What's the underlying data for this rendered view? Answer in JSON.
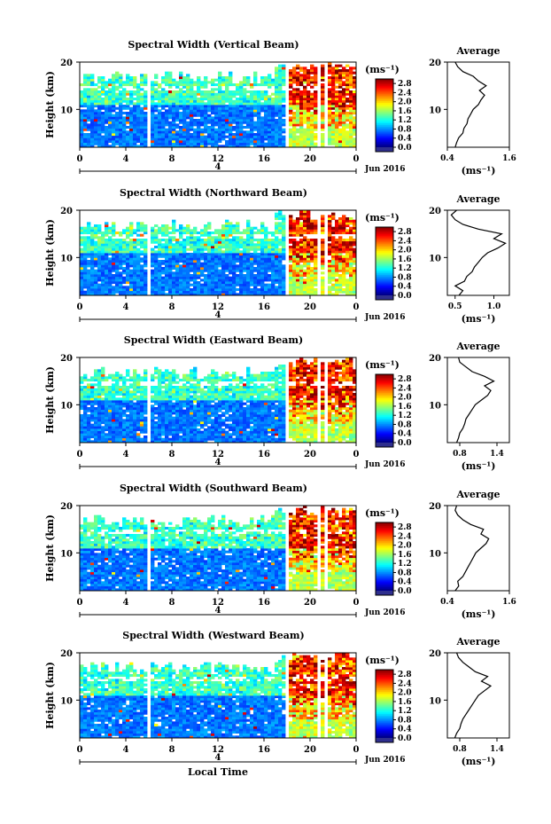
{
  "figure": {
    "xlabel": "Local Time",
    "date_label": "Jun 2016",
    "day_label": "4",
    "unit_label": "(ms⁻¹)",
    "colorbar_ticks": [
      "2.8",
      "2.4",
      "2.0",
      "1.6",
      "1.2",
      "0.8",
      "0.4",
      "0.0"
    ],
    "colormap": "jet",
    "no_data_color": "#ffffff"
  },
  "chart_data": [
    {
      "type": "heatmap",
      "title": "Spectral Width (Vertical Beam)",
      "ylabel": "Height (km)",
      "x_ticks": [
        "0",
        "4",
        "8",
        "12",
        "16",
        "20",
        "0"
      ],
      "y_ticks": [
        "20",
        "10"
      ],
      "xlim": [
        0,
        24
      ],
      "ylim": [
        2,
        20
      ],
      "colorbar_range": [
        0.0,
        3.0
      ],
      "avg_title": "Average",
      "avg_xticks": [
        "0.4",
        "1.6"
      ],
      "avg_xlim": [
        0.4,
        1.6
      ],
      "avg_xlabel": "(ms⁻¹)",
      "avg_profile": {
        "height": [
          2,
          3,
          4,
          5,
          6,
          7,
          8,
          9,
          10,
          11,
          12,
          13,
          14,
          15,
          16,
          17,
          18,
          19,
          20
        ],
        "width": [
          0.55,
          0.58,
          0.62,
          0.7,
          0.72,
          0.78,
          0.8,
          0.85,
          0.9,
          1.0,
          1.05,
          1.12,
          1.02,
          1.15,
          1.0,
          0.9,
          0.7,
          0.6,
          0.55
        ]
      }
    },
    {
      "type": "heatmap",
      "title": "Spectral Width (Northward Beam)",
      "ylabel": "Height (km)",
      "x_ticks": [
        "0",
        "4",
        "8",
        "12",
        "16",
        "20",
        "0"
      ],
      "y_ticks": [
        "20",
        "10"
      ],
      "xlim": [
        0,
        24
      ],
      "ylim": [
        2,
        20
      ],
      "colorbar_range": [
        0.0,
        3.0
      ],
      "avg_title": "Average",
      "avg_xticks": [
        "0.5",
        "1.0"
      ],
      "avg_xlim": [
        0.4,
        1.2
      ],
      "avg_xlabel": "(ms⁻¹)",
      "avg_profile": {
        "height": [
          2,
          3,
          4,
          5,
          6,
          7,
          8,
          9,
          10,
          11,
          12,
          13,
          14,
          15,
          16,
          17,
          18,
          19,
          20
        ],
        "width": [
          0.55,
          0.6,
          0.5,
          0.62,
          0.65,
          0.72,
          0.75,
          0.8,
          0.85,
          0.92,
          1.05,
          1.15,
          1.0,
          1.1,
          0.8,
          0.6,
          0.5,
          0.45,
          0.52
        ]
      }
    },
    {
      "type": "heatmap",
      "title": "Spectral Width (Eastward Beam)",
      "ylabel": "Height (km)",
      "x_ticks": [
        "0",
        "4",
        "8",
        "12",
        "16",
        "20",
        "0"
      ],
      "y_ticks": [
        "20",
        "10"
      ],
      "xlim": [
        0,
        24
      ],
      "ylim": [
        2,
        20
      ],
      "colorbar_range": [
        0.0,
        3.0
      ],
      "avg_title": "Average",
      "avg_xticks": [
        "0.8",
        "1.4"
      ],
      "avg_xlim": [
        0.6,
        1.6
      ],
      "avg_xlabel": "(ms⁻¹)",
      "avg_profile": {
        "height": [
          2,
          3,
          4,
          5,
          6,
          7,
          8,
          9,
          10,
          11,
          12,
          13,
          14,
          15,
          16,
          17,
          18,
          19,
          20
        ],
        "width": [
          0.75,
          0.78,
          0.8,
          0.85,
          0.88,
          0.9,
          0.95,
          1.0,
          1.05,
          1.15,
          1.25,
          1.3,
          1.2,
          1.35,
          1.2,
          1.0,
          0.9,
          0.8,
          0.78
        ]
      }
    },
    {
      "type": "heatmap",
      "title": "Spectral Width (Southward Beam)",
      "ylabel": "Height (km)",
      "x_ticks": [
        "0",
        "4",
        "8",
        "12",
        "16",
        "20",
        "0"
      ],
      "y_ticks": [
        "20",
        "10"
      ],
      "xlim": [
        0,
        24
      ],
      "ylim": [
        2,
        20
      ],
      "colorbar_range": [
        0.0,
        3.0
      ],
      "avg_title": "Average",
      "avg_xticks": [
        "0.4",
        "1.6"
      ],
      "avg_xlim": [
        0.4,
        1.6
      ],
      "avg_xlabel": "(ms⁻¹)",
      "avg_profile": {
        "height": [
          2,
          3,
          4,
          5,
          6,
          7,
          8,
          9,
          10,
          11,
          12,
          13,
          14,
          15,
          16,
          17,
          18,
          19,
          20
        ],
        "width": [
          0.55,
          0.62,
          0.6,
          0.7,
          0.75,
          0.8,
          0.85,
          0.9,
          0.95,
          1.05,
          1.15,
          1.2,
          1.05,
          1.1,
          0.85,
          0.7,
          0.6,
          0.55,
          0.58
        ]
      }
    },
    {
      "type": "heatmap",
      "title": "Spectral Width (Westward Beam)",
      "ylabel": "Height (km)",
      "x_ticks": [
        "0",
        "4",
        "8",
        "12",
        "16",
        "20",
        "0"
      ],
      "y_ticks": [
        "20",
        "10"
      ],
      "xlim": [
        0,
        24
      ],
      "ylim": [
        2,
        20
      ],
      "colorbar_range": [
        0.0,
        3.0
      ],
      "avg_title": "Average",
      "avg_xticks": [
        "0.8",
        "1.4"
      ],
      "avg_xlim": [
        0.6,
        1.6
      ],
      "avg_xlabel": "(ms⁻¹)",
      "avg_profile": {
        "height": [
          2,
          3,
          4,
          5,
          6,
          7,
          8,
          9,
          10,
          11,
          12,
          13,
          14,
          15,
          16,
          17,
          18,
          19,
          20
        ],
        "width": [
          0.72,
          0.75,
          0.8,
          0.82,
          0.85,
          0.9,
          0.95,
          1.0,
          1.05,
          1.1,
          1.2,
          1.3,
          1.15,
          1.25,
          1.05,
          0.95,
          0.85,
          0.78,
          0.75
        ]
      }
    }
  ]
}
